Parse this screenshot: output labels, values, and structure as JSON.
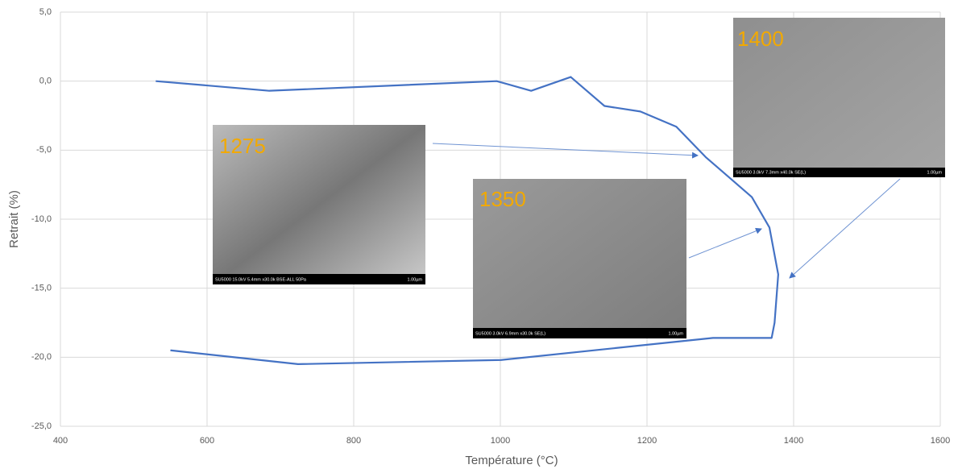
{
  "chart_data": {
    "type": "line",
    "x_label": "Température (°C)",
    "y_label": "Retrait (%)",
    "x": [
      530,
      685,
      995,
      1042,
      1096,
      1142,
      1191,
      1240,
      1280,
      1343,
      1367,
      1379,
      1374,
      1370,
      1290,
      1001,
      724,
      550
    ],
    "series": [
      {
        "color": "#4472c4",
        "values": [
          0.0,
          -0.7,
          0.0,
          -0.7,
          0.3,
          -1.8,
          -2.2,
          -3.3,
          -5.5,
          -8.4,
          -10.6,
          -14.0,
          -17.5,
          -18.6,
          -18.6,
          -20.2,
          -20.5,
          -19.5
        ]
      }
    ],
    "xlim": [
      400,
      1600
    ],
    "xticks": [
      400,
      600,
      800,
      1000,
      1200,
      1400,
      1600
    ],
    "ylim": [
      -25,
      5
    ],
    "yticks": [
      {
        "value": -25,
        "label": "-25,0"
      },
      {
        "value": -20,
        "label": "-20,0"
      },
      {
        "value": -15,
        "label": "-15,0"
      },
      {
        "value": -10,
        "label": "-10,0"
      },
      {
        "value": -5,
        "label": "-5,0"
      },
      {
        "value": 0,
        "label": "0,0"
      },
      {
        "value": 5,
        "label": "5,0"
      }
    ],
    "grid": true,
    "annotations": [
      {
        "text": "1275",
        "caption": "SU5000 15.0kV 5.4mm x30.0k BSE-ALL 50Pa",
        "scale": "1.00µm"
      },
      {
        "text": "1350",
        "caption": "SU5000 3.0kV 6.9mm x30.0k SE(L)",
        "scale": "1.00µm"
      },
      {
        "text": "1400",
        "caption": "SU5000 3.0kV 7.3mm x40.0k SE(L)",
        "scale": "1.00µm"
      }
    ]
  }
}
